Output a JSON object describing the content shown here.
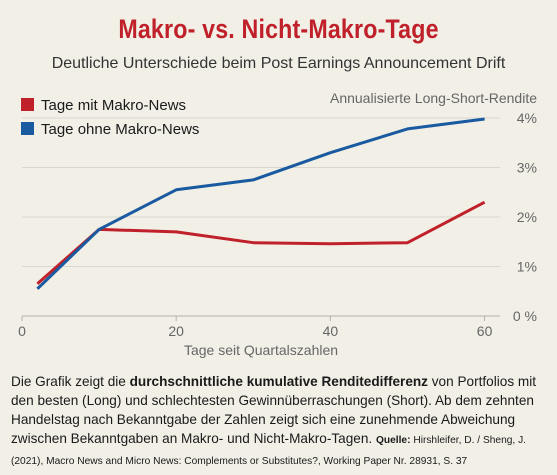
{
  "title": "Makro- vs. Nicht-Makro-Tage",
  "subtitle": "Deutliche Unterschiede beim Post Earnings Announcement Drift",
  "colors": {
    "red": "#c0202a",
    "blue": "#1a5aa0",
    "grid": "#d9d7cf",
    "text": "#666666"
  },
  "chart_data": {
    "type": "line",
    "title": "Makro- vs. Nicht-Makro-Tage",
    "subtitle": "Deutliche Unterschiede beim Post Earnings Announcement Drift",
    "xlabel": "Tage seit  Quartalszahlen",
    "ylabel": "Annualisierte Long-Short-Rendite",
    "xlim": [
      0,
      62
    ],
    "ylim": [
      0,
      4
    ],
    "x_ticks": [
      0,
      20,
      40,
      60
    ],
    "y_ticks": [
      {
        "value": 0,
        "label": "0 %"
      },
      {
        "value": 1,
        "label": "1%"
      },
      {
        "value": 2,
        "label": "2%"
      },
      {
        "value": 3,
        "label": "3%"
      },
      {
        "value": 4,
        "label": "4%"
      }
    ],
    "grid": true,
    "legend_position": "top-left",
    "series": [
      {
        "name": "Tage mit Makro-News",
        "color": "#c0202a",
        "x": [
          2,
          10,
          20,
          30,
          40,
          50,
          60
        ],
        "y": [
          0.65,
          1.75,
          1.7,
          1.48,
          1.46,
          1.48,
          2.3
        ]
      },
      {
        "name": "Tage ohne Makro-News",
        "color": "#1a5aa0",
        "x": [
          2,
          10,
          20,
          30,
          40,
          50,
          60
        ],
        "y": [
          0.55,
          1.75,
          2.55,
          2.75,
          3.3,
          3.78,
          3.98
        ]
      }
    ]
  },
  "caption": {
    "part1": "Die Grafik zeigt die ",
    "bold": "durchschnittliche kumulative Renditedifferenz",
    "part2": " von Portfolios mit den besten (Long) und schlechtesten Gewinnüberraschungen (Short). Ab dem zehnten Handelstag nach Bekanntgabe der Zahlen zeigt sich eine zunehmende Abweichung zwischen Bekanntgaben an Makro- und Nicht-Makro-Tagen. ",
    "source_label": "Quelle:",
    "source_text": " Hirshleifer, D. / Sheng, J. (2021), Macro News and Micro News: Complements or Substitutes?, Working Paper Nr. 28931, S. 37"
  }
}
